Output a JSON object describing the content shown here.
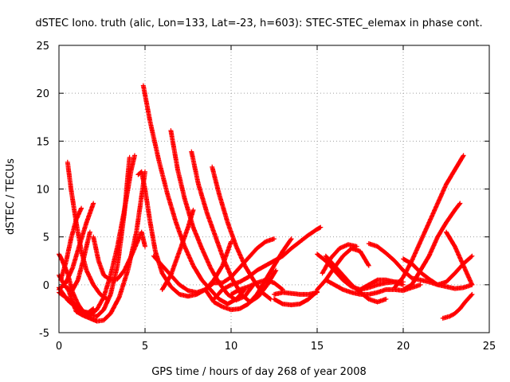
{
  "chart_data": {
    "type": "scatter",
    "title": "dSTEC Iono. truth (alic, Lon=133, Lat=-23, h=603): STEC-STEC_elemax in phase cont.",
    "xlabel": "GPS time / hours of day 268 of year 2008",
    "ylabel": "dSTEC  / TECUs",
    "xlim": [
      0,
      25
    ],
    "ylim": [
      -5,
      25
    ],
    "xticks": [
      0,
      5,
      10,
      15,
      20,
      25
    ],
    "yticks": [
      -5,
      0,
      5,
      10,
      15,
      20,
      25
    ],
    "grid": true,
    "marker": "plus",
    "color": "#ff0000",
    "series": [
      {
        "x": [
          0.0,
          0.3,
          0.7,
          1.2,
          1.7,
          2.2,
          2.6,
          3.0,
          3.4,
          3.8,
          4.1
        ],
        "y": [
          -0.8,
          -1.2,
          -1.7,
          -2.5,
          -3.1,
          -3.3,
          -2.6,
          -1.0,
          2.0,
          7.5,
          13.3
        ]
      },
      {
        "x": [
          0.0,
          0.5,
          1.0,
          1.4,
          1.8,
          2.2,
          2.6,
          3.0,
          3.4,
          3.8,
          4.2,
          4.4
        ],
        "y": [
          -0.3,
          -1.6,
          -2.4,
          -2.9,
          -3.1,
          -2.6,
          -1.3,
          1.0,
          4.0,
          7.8,
          12.0,
          13.5
        ]
      },
      {
        "x": [
          0.5,
          1.0,
          1.4,
          1.8,
          2.2,
          2.6,
          3.0,
          3.5,
          4.0,
          4.5,
          5.0
        ],
        "y": [
          -0.3,
          -2.8,
          -3.2,
          -3.5,
          -3.8,
          -3.7,
          -3.0,
          -1.3,
          1.5,
          5.5,
          11.8
        ]
      },
      {
        "x": [
          0.0,
          0.4,
          0.8,
          1.2,
          1.6,
          2.0
        ],
        "y": [
          -0.5,
          0.2,
          1.8,
          4.2,
          6.5,
          8.5
        ]
      },
      {
        "x": [
          0.1,
          0.4,
          0.7,
          1.0,
          1.3
        ],
        "y": [
          0.5,
          2.3,
          4.8,
          6.8,
          8.0
        ]
      },
      {
        "x": [
          0.0,
          0.2,
          0.5,
          0.8,
          1.1,
          1.4,
          1.7,
          2.0
        ],
        "y": [
          3.2,
          2.5,
          1.2,
          -0.8,
          -2.0,
          -2.8,
          -2.9,
          -2.5
        ]
      },
      {
        "x": [
          0.5,
          0.7,
          1.0,
          1.3,
          1.6,
          2.0,
          2.4,
          2.8
        ],
        "y": [
          12.8,
          10.0,
          6.5,
          3.5,
          1.5,
          0.0,
          -1.0,
          -1.5
        ]
      },
      {
        "x": [
          0.0,
          0.4,
          0.8,
          1.1,
          1.4,
          1.8
        ],
        "y": [
          1.0,
          -0.3,
          -0.5,
          0.5,
          2.5,
          5.5
        ]
      },
      {
        "x": [
          2.0,
          2.3,
          2.6,
          3.0,
          3.4,
          3.8,
          4.2,
          4.8,
          5.0
        ],
        "y": [
          5.0,
          2.5,
          1.0,
          0.5,
          0.6,
          1.5,
          3.0,
          5.5,
          4.0
        ]
      },
      {
        "x": [
          4.6,
          4.8,
          5.0,
          5.3,
          5.6,
          6.0,
          6.5,
          7.0,
          7.5,
          8.0,
          8.5,
          9.0,
          9.5,
          10.0
        ],
        "y": [
          11.5,
          11.8,
          10.0,
          6.5,
          3.5,
          1.2,
          -0.2,
          -1.0,
          -1.2,
          -1.0,
          -0.5,
          0.5,
          2.0,
          4.5
        ]
      },
      {
        "x": [
          4.9,
          5.3,
          5.8,
          6.3,
          6.8,
          7.3,
          7.8,
          8.3,
          8.8,
          9.3,
          9.8,
          10.3,
          10.8
        ],
        "y": [
          20.8,
          17.0,
          13.0,
          9.5,
          6.5,
          4.0,
          2.0,
          0.5,
          -0.5,
          -1.5,
          -2.0,
          -1.5,
          -0.5
        ]
      },
      {
        "x": [
          6.5,
          6.9,
          7.3,
          7.8,
          8.3,
          8.8,
          9.3,
          9.8,
          10.3,
          10.8,
          11.3
        ],
        "y": [
          16.1,
          12.0,
          9.0,
          6.0,
          3.8,
          1.8,
          0.2,
          -1.0,
          -1.6,
          -1.2,
          0.0
        ]
      },
      {
        "x": [
          7.7,
          8.1,
          8.6,
          9.1,
          9.6,
          10.1,
          10.6,
          11.1,
          11.6,
          12.1,
          12.6
        ],
        "y": [
          13.9,
          10.5,
          7.5,
          5.0,
          2.5,
          0.5,
          -1.0,
          -1.8,
          -1.2,
          0.0,
          1.5
        ]
      },
      {
        "x": [
          8.9,
          9.3,
          9.8,
          10.3,
          10.8,
          11.3,
          11.8,
          12.3
        ],
        "y": [
          12.3,
          9.5,
          6.5,
          4.0,
          2.0,
          0.5,
          -0.8,
          -1.5
        ]
      },
      {
        "x": [
          6.0,
          6.5,
          7.0,
          7.5,
          7.8
        ],
        "y": [
          -0.5,
          1.0,
          3.5,
          6.0,
          7.8
        ]
      },
      {
        "x": [
          5.5,
          6.0,
          6.5,
          7.0,
          7.5,
          8.0,
          8.5,
          9.0,
          9.5,
          10.0,
          10.5,
          11.0,
          11.5,
          12.0,
          12.5
        ],
        "y": [
          3.0,
          2.0,
          1.0,
          0.0,
          -0.6,
          -0.8,
          -0.5,
          0.2,
          0.2,
          0.8,
          1.8,
          2.8,
          3.8,
          4.5,
          4.8
        ]
      },
      {
        "x": [
          8.5,
          9.0,
          9.5,
          10.0,
          10.5,
          11.0,
          11.5,
          12.0,
          12.5,
          13.0,
          13.5
        ],
        "y": [
          -0.5,
          -1.8,
          -2.3,
          -2.6,
          -2.5,
          -2.0,
          -1.0,
          0.5,
          2.0,
          3.5,
          4.8
        ]
      },
      {
        "x": [
          9.0,
          9.5,
          10.0,
          10.5,
          11.0,
          11.5,
          12.0,
          12.5,
          13.0,
          13.5,
          14.0,
          14.5,
          15.0,
          15.2
        ],
        "y": [
          -1.5,
          -0.5,
          0.0,
          0.3,
          0.8,
          1.5,
          2.0,
          2.5,
          3.0,
          3.8,
          4.5,
          5.2,
          5.8,
          6.0
        ]
      },
      {
        "x": [
          10.0,
          10.5,
          11.0,
          11.5,
          12.0,
          12.5,
          13.0
        ],
        "y": [
          -1.0,
          -0.5,
          -0.2,
          0.2,
          0.5,
          0.2,
          -0.5
        ]
      },
      {
        "x": [
          12.5,
          13.0,
          13.5,
          14.0,
          14.5,
          15.0
        ],
        "y": [
          -1.5,
          -2.0,
          -2.1,
          -2.0,
          -1.5,
          -0.7
        ]
      },
      {
        "x": [
          12.5,
          13.0,
          13.5,
          14.0,
          14.5,
          15.0
        ],
        "y": [
          -1.0,
          -0.8,
          -0.9,
          -1.0,
          -1.0,
          -0.8
        ]
      },
      {
        "x": [
          15.0,
          15.5,
          16.0,
          16.5,
          17.0,
          17.5,
          18.0,
          18.5,
          19.0,
          19.5,
          20.0
        ],
        "y": [
          3.2,
          2.5,
          1.5,
          0.5,
          -0.2,
          -0.5,
          -0.3,
          0.0,
          0.2,
          0.3,
          0.3
        ]
      },
      {
        "x": [
          15.5,
          16.0,
          16.5,
          17.0,
          17.5,
          18.0,
          18.5,
          19.0
        ],
        "y": [
          3.0,
          2.0,
          1.0,
          0.0,
          -0.8,
          -1.5,
          -1.8,
          -1.5
        ]
      },
      {
        "x": [
          15.0,
          15.5,
          16.0,
          16.5,
          17.0,
          17.5,
          18.0
        ],
        "y": [
          -0.5,
          0.5,
          1.8,
          3.0,
          3.8,
          3.5,
          2.0
        ]
      },
      {
        "x": [
          15.3,
          15.8,
          16.3,
          16.8,
          17.3
        ],
        "y": [
          1.2,
          2.8,
          3.8,
          4.2,
          4.0
        ]
      },
      {
        "x": [
          15.5,
          16.0,
          16.5,
          17.0,
          17.5,
          18.0,
          18.5,
          19.0,
          19.5,
          20.0,
          20.5,
          21.0
        ],
        "y": [
          0.5,
          0.0,
          -0.5,
          -0.8,
          -1.0,
          -1.0,
          -0.8,
          -0.5,
          -0.5,
          -0.6,
          -0.3,
          0.0
        ]
      },
      {
        "x": [
          18.0,
          18.5,
          19.0,
          19.5,
          20.0,
          20.5,
          21.0,
          21.5,
          22.0,
          22.5,
          23.0,
          23.5,
          24.0
        ],
        "y": [
          4.3,
          4.0,
          3.3,
          2.5,
          1.5,
          0.7,
          0.5,
          0.3,
          0.0,
          -0.2,
          -0.4,
          -0.3,
          0.0
        ]
      },
      {
        "x": [
          17.5,
          18.0,
          18.5,
          19.0,
          19.5,
          20.0
        ],
        "y": [
          -0.5,
          0.0,
          0.5,
          0.5,
          0.3,
          0.0
        ]
      },
      {
        "x": [
          19.5,
          20.0,
          20.5,
          21.0,
          21.5,
          22.0,
          22.5,
          23.0,
          23.5
        ],
        "y": [
          -0.3,
          0.8,
          2.5,
          4.5,
          6.5,
          8.5,
          10.5,
          12.0,
          13.5
        ]
      },
      {
        "x": [
          20.0,
          20.5,
          21.0,
          21.5,
          22.0,
          22.5,
          23.0,
          23.3
        ],
        "y": [
          -0.5,
          0.0,
          1.5,
          3.0,
          5.0,
          6.5,
          7.8,
          8.5
        ]
      },
      {
        "x": [
          20.0,
          20.5,
          21.0,
          21.5,
          22.0,
          22.5,
          23.0,
          23.5,
          24.0
        ],
        "y": [
          2.7,
          2.2,
          1.3,
          0.6,
          0.0,
          0.3,
          1.2,
          2.2,
          3.0
        ]
      },
      {
        "x": [
          22.5,
          23.0,
          23.5,
          24.0
        ],
        "y": [
          5.5,
          4.0,
          2.0,
          0.0
        ]
      },
      {
        "x": [
          22.3,
          22.7,
          23.0,
          23.3,
          23.6,
          24.0
        ],
        "y": [
          -3.5,
          -3.3,
          -3.0,
          -2.5,
          -1.8,
          -1.0
        ]
      }
    ]
  }
}
